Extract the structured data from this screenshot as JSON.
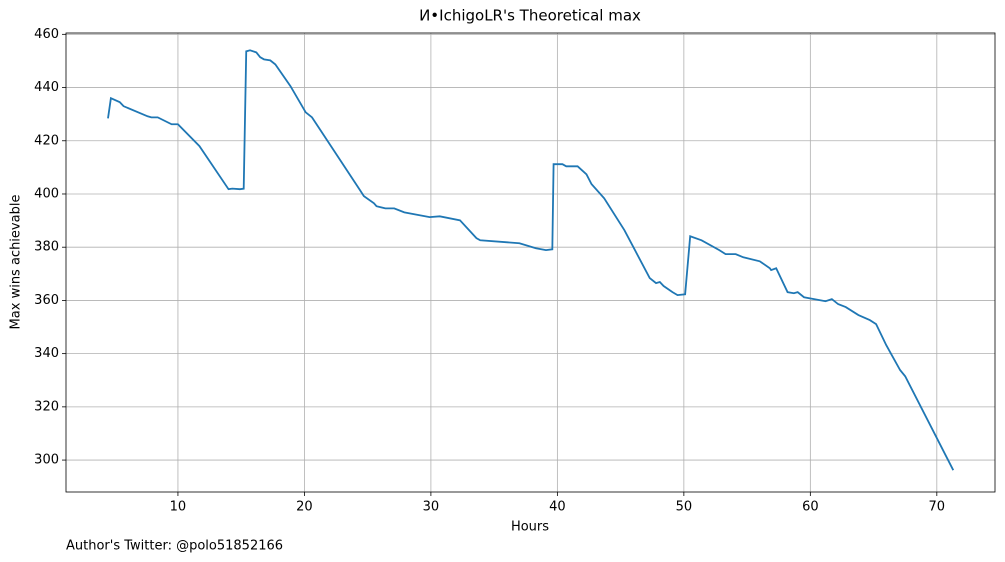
{
  "chart_data": {
    "type": "line",
    "title": "И•IchigoLR's Theoretical max",
    "x_label": "Hours",
    "y_label": "Max wins achievable",
    "footnote": "Author's Twitter: @polo51852166",
    "color": "#1f77b4",
    "grid": true,
    "xlim": [
      1.15,
      74.6
    ],
    "ylim": [
      288,
      460.5
    ],
    "xticks": [
      10,
      20,
      30,
      40,
      50,
      60,
      70
    ],
    "yticks": [
      300,
      320,
      340,
      360,
      380,
      400,
      420,
      440,
      460
    ],
    "x": [
      4.47,
      4.7,
      5.4,
      5.7,
      7.6,
      7.9,
      8.4,
      9.5,
      10,
      11.7,
      14,
      14.3,
      14.9,
      15.2,
      15.4,
      15.7,
      16.2,
      16.5,
      16.8,
      17.3,
      17.7,
      18.9,
      20.1,
      20.6,
      24.4,
      24.7,
      25.5,
      25.7,
      26.4,
      27.1,
      27.9,
      29.9,
      30.7,
      32.3,
      33.6,
      33.9,
      37,
      38.3,
      39.1,
      39.6,
      39.7,
      40.4,
      40.7,
      41.6,
      42.3,
      42.7,
      43.7,
      45.3,
      47.3,
      47.8,
      48.1,
      48.4,
      49.1,
      49.5,
      50.1,
      50.5,
      51.4,
      52.8,
      53.3,
      54.1,
      54.7,
      56,
      56.8,
      56.9,
      57.3,
      58.2,
      58.7,
      59,
      59.5,
      61.2,
      61.7,
      62.2,
      62.8,
      63.8,
      64.7,
      65.2,
      66,
      67.1,
      67.5,
      71.3
    ],
    "values": [
      428.4,
      436,
      434.5,
      433,
      429.2,
      428.8,
      428.8,
      426.2,
      426.2,
      418,
      401.8,
      402,
      401.8,
      402,
      453.6,
      454,
      453.2,
      451.4,
      450.6,
      450.2,
      448.7,
      440.5,
      430.7,
      428.8,
      401.4,
      399.2,
      396.5,
      395.4,
      394.6,
      394.6,
      393.1,
      391.3,
      391.6,
      390.1,
      383.4,
      382.6,
      381.5,
      379.6,
      378.9,
      379.2,
      411.2,
      411.2,
      410.4,
      410.4,
      407.4,
      403.7,
      398.4,
      386.4,
      368.4,
      366.5,
      366.9,
      365.4,
      363.1,
      362,
      362.3,
      384.1,
      382.6,
      378.9,
      377.4,
      377.4,
      376.2,
      374.7,
      372.1,
      371.4,
      372.1,
      363.1,
      362.7,
      363.1,
      361.2,
      359.7,
      360.5,
      358.6,
      357.5,
      354.5,
      352.6,
      351.1,
      343.2,
      333.8,
      331.5,
      296.2
    ]
  }
}
